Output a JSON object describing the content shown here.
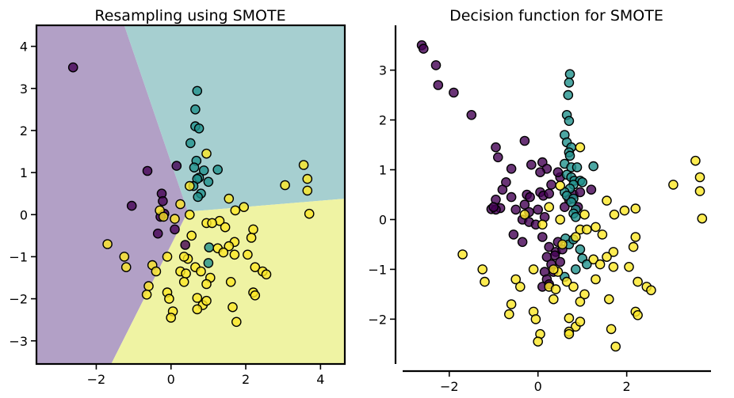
{
  "chart_data": [
    {
      "type": "scatter",
      "title": "Resampling using SMOTE",
      "xlabel": "",
      "ylabel": "",
      "xlim": [
        -3.6,
        4.65
      ],
      "ylim": [
        -3.55,
        4.5
      ],
      "xticks": [
        -2,
        0,
        2,
        4
      ],
      "yticks": [
        -3,
        -2,
        -1,
        0,
        1,
        2,
        3,
        4
      ],
      "tick_labels_x": [
        "−2",
        "0",
        "2",
        "4"
      ],
      "tick_labels_y": [
        "−3",
        "−2",
        "−1",
        "0",
        "1",
        "2",
        "3",
        "4"
      ],
      "grid": false,
      "decision_regions": [
        {
          "class": 0,
          "color": "#b2a0c6"
        },
        {
          "class": 1,
          "color": "#a6cfd0"
        },
        {
          "class": 2,
          "color": "#eff3a3"
        }
      ],
      "series": [
        {
          "class": 0,
          "color": "#440154",
          "points": [
            [
              -2.62,
              3.5
            ],
            [
              -0.63,
              1.04
            ],
            [
              0.15,
              1.16
            ],
            [
              -1.05,
              0.21
            ],
            [
              -0.25,
              0.5
            ],
            [
              -0.22,
              0.32
            ],
            [
              -0.18,
              0.02
            ],
            [
              -0.35,
              -0.45
            ],
            [
              0.1,
              -0.35
            ],
            [
              0.38,
              -0.72
            ],
            [
              -0.28,
              -0.05
            ]
          ]
        },
        {
          "class": 1,
          "color": "#21918c",
          "points": [
            [
              0.7,
              2.94
            ],
            [
              0.65,
              2.5
            ],
            [
              0.65,
              2.1
            ],
            [
              0.75,
              2.05
            ],
            [
              0.52,
              1.7
            ],
            [
              0.68,
              1.28
            ],
            [
              0.62,
              1.12
            ],
            [
              0.88,
              1.05
            ],
            [
              1.25,
              1.07
            ],
            [
              0.75,
              0.88
            ],
            [
              0.7,
              0.85
            ],
            [
              1.0,
              0.78
            ],
            [
              0.8,
              0.5
            ],
            [
              0.72,
              0.42
            ],
            [
              0.6,
              0.68
            ],
            [
              1.02,
              -0.78
            ],
            [
              1.0,
              -1.15
            ]
          ]
        },
        {
          "class": 2,
          "color": "#fde725",
          "points": [
            [
              0.95,
              1.45
            ],
            [
              3.05,
              0.7
            ],
            [
              3.55,
              1.18
            ],
            [
              3.65,
              0.85
            ],
            [
              3.65,
              0.57
            ],
            [
              3.7,
              0.02
            ],
            [
              1.55,
              0.38
            ],
            [
              1.72,
              0.1
            ],
            [
              1.95,
              0.18
            ],
            [
              1.3,
              -0.15
            ],
            [
              0.5,
              0.68
            ],
            [
              0.25,
              0.25
            ],
            [
              0.5,
              0.0
            ],
            [
              -0.3,
              0.1
            ],
            [
              -0.2,
              -0.05
            ],
            [
              0.1,
              -0.1
            ],
            [
              0.55,
              -0.5
            ],
            [
              0.95,
              -0.2
            ],
            [
              1.1,
              -0.2
            ],
            [
              1.45,
              -0.3
            ],
            [
              1.7,
              -0.65
            ],
            [
              1.55,
              -0.75
            ],
            [
              2.2,
              -0.35
            ],
            [
              2.15,
              -0.55
            ],
            [
              1.25,
              -0.8
            ],
            [
              1.4,
              -0.9
            ],
            [
              1.7,
              -0.95
            ],
            [
              2.05,
              -0.95
            ],
            [
              2.25,
              -1.25
            ],
            [
              0.45,
              -1.05
            ],
            [
              0.35,
              -1.0
            ],
            [
              0.65,
              -1.25
            ],
            [
              0.8,
              -1.35
            ],
            [
              1.05,
              -1.5
            ],
            [
              0.25,
              -1.35
            ],
            [
              0.4,
              -1.4
            ],
            [
              -0.1,
              -1.0
            ],
            [
              -0.5,
              -1.2
            ],
            [
              -0.4,
              -1.35
            ],
            [
              -0.6,
              -1.7
            ],
            [
              -0.65,
              -1.9
            ],
            [
              -0.1,
              -1.85
            ],
            [
              0.35,
              -1.6
            ],
            [
              0.95,
              -1.65
            ],
            [
              1.6,
              -1.6
            ],
            [
              2.2,
              -1.85
            ],
            [
              2.25,
              -1.92
            ],
            [
              2.45,
              -1.35
            ],
            [
              2.55,
              -1.42
            ],
            [
              0.7,
              -1.98
            ],
            [
              0.85,
              -2.15
            ],
            [
              0.95,
              -2.05
            ],
            [
              0.7,
              -2.25
            ],
            [
              1.65,
              -2.2
            ],
            [
              1.75,
              -2.55
            ],
            [
              -0.05,
              -2.0
            ],
            [
              0.05,
              -2.3
            ],
            [
              0.0,
              -2.45
            ],
            [
              -1.7,
              -0.7
            ],
            [
              -1.25,
              -1.0
            ],
            [
              -1.2,
              -1.25
            ]
          ]
        }
      ]
    },
    {
      "type": "scatter",
      "title": "Decision function for SMOTE",
      "xlabel": "",
      "ylabel": "",
      "xlim": [
        -3.05,
        3.9
      ],
      "ylim": [
        -2.9,
        3.9
      ],
      "xticks": [
        -2,
        0,
        2
      ],
      "yticks": [
        -2,
        -1,
        0,
        1,
        2,
        3
      ],
      "tick_labels_x": [
        "−2",
        "0",
        "2"
      ],
      "tick_labels_y": [
        "−2",
        "−1",
        "0",
        "1",
        "2",
        "3"
      ],
      "grid": false,
      "series": [
        {
          "class": 0,
          "color": "#440154",
          "points": [
            [
              -2.62,
              3.5
            ],
            [
              -2.58,
              3.43
            ],
            [
              -2.3,
              3.1
            ],
            [
              -2.25,
              2.7
            ],
            [
              -1.9,
              2.55
            ],
            [
              -1.5,
              2.1
            ],
            [
              -0.95,
              1.45
            ],
            [
              -0.9,
              1.25
            ],
            [
              -0.6,
              1.02
            ],
            [
              -0.3,
              1.58
            ],
            [
              0.1,
              1.15
            ],
            [
              -0.15,
              1.1
            ],
            [
              0.2,
              1.02
            ],
            [
              0.05,
              0.95
            ],
            [
              -0.72,
              0.75
            ],
            [
              -0.8,
              0.6
            ],
            [
              -0.6,
              0.45
            ],
            [
              -0.95,
              0.4
            ],
            [
              -0.85,
              0.23
            ],
            [
              -1.05,
              0.21
            ],
            [
              -0.95,
              0.2
            ],
            [
              -0.5,
              0.2
            ],
            [
              -0.3,
              0.3
            ],
            [
              -0.2,
              0.15
            ],
            [
              -0.25,
              0.5
            ],
            [
              -0.18,
              0.45
            ],
            [
              0.05,
              0.55
            ],
            [
              0.12,
              0.48
            ],
            [
              0.25,
              0.52
            ],
            [
              0.3,
              0.7
            ],
            [
              0.0,
              0.2
            ],
            [
              0.15,
              0.05
            ],
            [
              -0.35,
              0.0
            ],
            [
              -0.2,
              -0.05
            ],
            [
              -0.05,
              -0.1
            ],
            [
              -0.55,
              -0.3
            ],
            [
              -0.35,
              -0.45
            ],
            [
              0.1,
              -0.35
            ],
            [
              0.25,
              -0.55
            ],
            [
              0.4,
              -0.65
            ],
            [
              0.38,
              -0.72
            ],
            [
              0.2,
              -0.75
            ],
            [
              0.3,
              -0.9
            ],
            [
              0.15,
              -1.05
            ],
            [
              0.2,
              -1.2
            ],
            [
              0.1,
              -1.35
            ],
            [
              0.25,
              -1.3
            ],
            [
              0.35,
              -1.05
            ],
            [
              0.5,
              -0.85
            ],
            [
              0.55,
              -0.6
            ],
            [
              0.45,
              -0.45
            ],
            [
              0.6,
              0.25
            ],
            [
              0.7,
              0.4
            ],
            [
              0.8,
              0.5
            ],
            [
              0.95,
              0.55
            ],
            [
              1.2,
              0.6
            ],
            [
              0.9,
              0.25
            ],
            [
              0.5,
              0.85
            ],
            [
              0.45,
              0.95
            ],
            [
              -1.0,
              0.25
            ]
          ]
        },
        {
          "class": 1,
          "color": "#21918c",
          "points": [
            [
              0.72,
              2.92
            ],
            [
              0.7,
              2.75
            ],
            [
              0.68,
              2.5
            ],
            [
              0.65,
              2.1
            ],
            [
              0.7,
              1.98
            ],
            [
              0.6,
              1.7
            ],
            [
              0.65,
              1.55
            ],
            [
              0.75,
              1.45
            ],
            [
              0.7,
              1.35
            ],
            [
              0.72,
              1.28
            ],
            [
              0.6,
              1.12
            ],
            [
              0.75,
              1.05
            ],
            [
              0.88,
              1.05
            ],
            [
              1.25,
              1.07
            ],
            [
              0.65,
              0.9
            ],
            [
              0.75,
              0.85
            ],
            [
              0.82,
              0.78
            ],
            [
              0.95,
              0.78
            ],
            [
              1.0,
              0.75
            ],
            [
              0.8,
              0.7
            ],
            [
              0.72,
              0.62
            ],
            [
              0.6,
              0.55
            ],
            [
              0.65,
              0.48
            ],
            [
              0.8,
              0.42
            ],
            [
              0.75,
              0.35
            ],
            [
              0.85,
              0.2
            ],
            [
              0.8,
              0.12
            ],
            [
              0.85,
              0.05
            ],
            [
              0.62,
              -0.38
            ],
            [
              0.7,
              -0.5
            ],
            [
              0.8,
              -0.4
            ],
            [
              0.95,
              -0.6
            ],
            [
              1.0,
              -0.78
            ],
            [
              1.1,
              -0.9
            ],
            [
              0.85,
              -1.0
            ],
            [
              0.6,
              -1.15
            ]
          ]
        },
        {
          "class": 2,
          "color": "#fde725",
          "points": [
            [
              0.95,
              1.45
            ],
            [
              3.05,
              0.7
            ],
            [
              3.55,
              1.18
            ],
            [
              3.65,
              0.85
            ],
            [
              3.65,
              0.57
            ],
            [
              3.7,
              0.02
            ],
            [
              1.55,
              0.38
            ],
            [
              1.72,
              0.1
            ],
            [
              1.95,
              0.18
            ],
            [
              2.2,
              0.22
            ],
            [
              1.3,
              -0.15
            ],
            [
              0.5,
              0.68
            ],
            [
              0.25,
              0.25
            ],
            [
              0.5,
              0.0
            ],
            [
              -0.3,
              0.1
            ],
            [
              0.1,
              -0.1
            ],
            [
              0.55,
              -0.5
            ],
            [
              0.95,
              -0.2
            ],
            [
              1.1,
              -0.2
            ],
            [
              1.45,
              -0.3
            ],
            [
              1.7,
              -0.65
            ],
            [
              1.55,
              -0.75
            ],
            [
              2.2,
              -0.35
            ],
            [
              2.15,
              -0.55
            ],
            [
              1.25,
              -0.8
            ],
            [
              1.4,
              -0.9
            ],
            [
              1.7,
              -0.95
            ],
            [
              2.05,
              -0.95
            ],
            [
              2.25,
              -1.25
            ],
            [
              0.45,
              -1.05
            ],
            [
              0.35,
              -1.0
            ],
            [
              0.65,
              -1.25
            ],
            [
              0.8,
              -1.35
            ],
            [
              1.05,
              -1.5
            ],
            [
              0.25,
              -1.35
            ],
            [
              0.4,
              -1.4
            ],
            [
              -0.1,
              -1.0
            ],
            [
              -0.5,
              -1.2
            ],
            [
              -0.4,
              -1.35
            ],
            [
              -0.6,
              -1.7
            ],
            [
              -0.65,
              -1.9
            ],
            [
              -0.1,
              -1.85
            ],
            [
              0.35,
              -1.6
            ],
            [
              0.95,
              -1.65
            ],
            [
              1.6,
              -1.6
            ],
            [
              2.2,
              -1.85
            ],
            [
              2.25,
              -1.92
            ],
            [
              2.45,
              -1.35
            ],
            [
              2.55,
              -1.42
            ],
            [
              0.7,
              -1.98
            ],
            [
              0.85,
              -2.15
            ],
            [
              0.95,
              -2.05
            ],
            [
              0.7,
              -2.25
            ],
            [
              1.65,
              -2.2
            ],
            [
              1.75,
              -2.55
            ],
            [
              -0.05,
              -2.0
            ],
            [
              0.05,
              -2.3
            ],
            [
              0.0,
              -2.45
            ],
            [
              -1.7,
              -0.7
            ],
            [
              -1.25,
              -1.0
            ],
            [
              -1.2,
              -1.25
            ],
            [
              0.7,
              -2.3
            ],
            [
              1.3,
              -1.2
            ],
            [
              0.85,
              -0.35
            ],
            [
              1.05,
              0.1
            ]
          ]
        }
      ]
    }
  ]
}
